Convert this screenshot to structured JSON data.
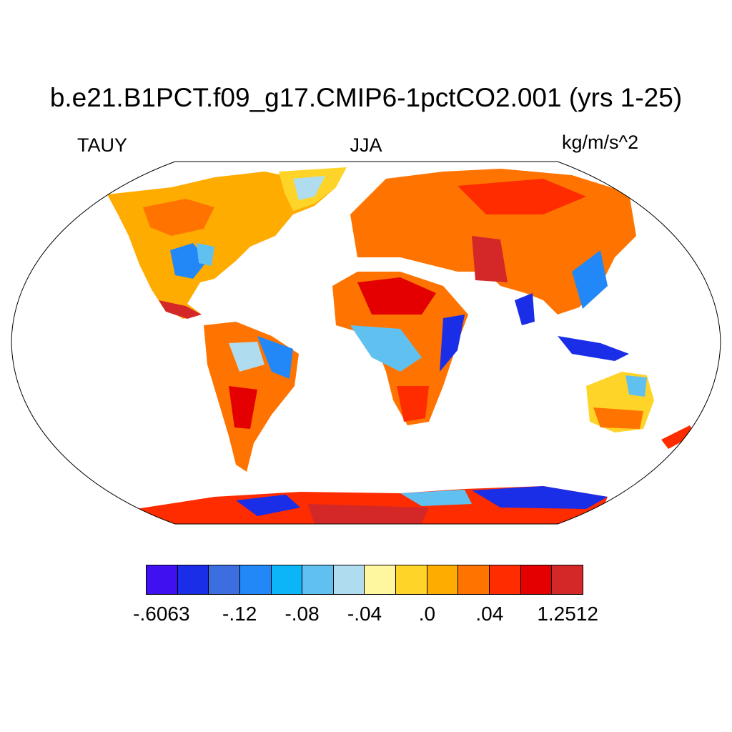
{
  "title": "b.e21.B1PCT.f09_g17.CMIP6-1pctCO2.001 (yrs 1-25)",
  "left_string": "TAUY",
  "center_string": "JJA",
  "right_string": "kg/m/s^2",
  "colorbar": {
    "colors": [
      "#4010f0",
      "#1a2ee8",
      "#3c6ee0",
      "#2288f8",
      "#0cb4f8",
      "#60c0f0",
      "#b0dcf0",
      "#fff6a0",
      "#ffd428",
      "#ffac00",
      "#ff7400",
      "#ff2c00",
      "#e40000",
      "#d42828"
    ],
    "tick_labels": [
      "-.6063",
      "-.12",
      "-.08",
      "-.04",
      ".0",
      ".04",
      "1.2512"
    ]
  },
  "map": {
    "projection": "robinson",
    "ocean_color": "#ffffff",
    "outline_color": "#000000"
  }
}
